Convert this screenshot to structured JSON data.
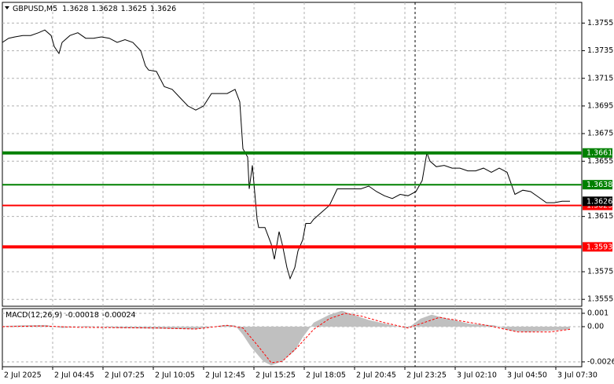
{
  "chart_data": [
    {
      "type": "line",
      "title": "GBPUSD,M5",
      "ohlc": [
        1.3628,
        1.3628,
        1.3625,
        1.3626
      ],
      "color": "#000000",
      "x": [
        0,
        4,
        8,
        13,
        18,
        23,
        27,
        31,
        33,
        36,
        38,
        43,
        48,
        53,
        58,
        63,
        68,
        73,
        78,
        83,
        88,
        91,
        93,
        98,
        103,
        108,
        113,
        118,
        123,
        128,
        133,
        138,
        143,
        148,
        151,
        153,
        156,
        157,
        159,
        162,
        163,
        167,
        171,
        173,
        176,
        178,
        181,
        183,
        186,
        188,
        191,
        193,
        196,
        198,
        203,
        208,
        213,
        218,
        223,
        228,
        233,
        238,
        243,
        248,
        253,
        258,
        263,
        267,
        270,
        272,
        276,
        281,
        286,
        291,
        296,
        301,
        306,
        311,
        316,
        321,
        326,
        331,
        336,
        341,
        346,
        351,
        356,
        361
      ],
      "values": [
        1.3741,
        1.3744,
        1.3745,
        1.3746,
        1.3746,
        1.3748,
        1.375,
        1.3746,
        1.3738,
        1.3733,
        1.3741,
        1.3746,
        1.3748,
        1.3744,
        1.3744,
        1.3745,
        1.3744,
        1.3741,
        1.3743,
        1.3741,
        1.3735,
        1.3724,
        1.3721,
        1.372,
        1.3709,
        1.3707,
        1.3701,
        1.3695,
        1.3692,
        1.3695,
        1.3704,
        1.3704,
        1.3704,
        1.3707,
        1.3698,
        1.3664,
        1.3658,
        1.3635,
        1.3652,
        1.3613,
        1.3607,
        1.3607,
        1.3595,
        1.3584,
        1.3604,
        1.3595,
        1.3578,
        1.357,
        1.3578,
        1.359,
        1.3598,
        1.361,
        1.361,
        1.3613,
        1.3618,
        1.3623,
        1.3635,
        1.3635,
        1.3635,
        1.3635,
        1.3637,
        1.3633,
        1.363,
        1.3628,
        1.3631,
        1.363,
        1.3633,
        1.3641,
        1.3661,
        1.3655,
        1.3651,
        1.3652,
        1.365,
        1.365,
        1.3648,
        1.3648,
        1.365,
        1.3647,
        1.365,
        1.3647,
        1.3631,
        1.3634,
        1.3633,
        1.3629,
        1.3625,
        1.3625,
        1.3626,
        1.3626
      ],
      "xlim": [
        0,
        368.5
      ],
      "xticks": [
        {
          "value": 0,
          "label": "2 Jul 2025"
        },
        {
          "value": 32,
          "label": "2 Jul 04:45"
        },
        {
          "value": 64,
          "label": "2 Jul 07:25"
        },
        {
          "value": 96,
          "label": "2 Jul 10:05"
        },
        {
          "value": 128,
          "label": "2 Jul 12:45"
        },
        {
          "value": 160,
          "label": "2 Jul 15:25"
        },
        {
          "value": 192,
          "label": "2 Jul 18:05"
        },
        {
          "value": 224,
          "label": "2 Jul 20:45"
        },
        {
          "value": 256,
          "label": "2 Jul 23:25"
        },
        {
          "value": 288,
          "label": "3 Jul 02:10"
        },
        {
          "value": 320,
          "label": "3 Jul 04:50"
        },
        {
          "value": 352,
          "label": "3 Jul 07:30"
        }
      ],
      "ylim": [
        1.355,
        1.377
      ],
      "yticks": [
        1.3755,
        1.3735,
        1.3715,
        1.3695,
        1.3675,
        1.3655,
        1.3615,
        1.3575,
        1.3555
      ],
      "grid": true,
      "levels": [
        {
          "value": 1.3661,
          "color": "#008000",
          "weight": "thick"
        },
        {
          "value": 1.3638,
          "color": "#008000",
          "weight": "thin"
        },
        {
          "value": 1.3623,
          "color": "#ff0000",
          "weight": "thin"
        },
        {
          "value": 1.3593,
          "color": "#ff0000",
          "weight": "thick"
        }
      ],
      "last": 1.3626
    },
    {
      "type": "macd",
      "title": "MACD(12,26,9)",
      "readout": [
        -0.00018,
        -0.00024
      ],
      "histogram": {
        "color": "#c0c0c0",
        "x": [
          0,
          13,
          28,
          38,
          53,
          73,
          98,
          123,
          141,
          148,
          153,
          158,
          166,
          171,
          178,
          186,
          191,
          198,
          208,
          216,
          223,
          233,
          248,
          258,
          266,
          273,
          283,
          298,
          313,
          323,
          333,
          348,
          361
        ],
        "values": [
          5e-05,
          0.0001,
          0.00012,
          -0.0001,
          5e-05,
          -0.0001,
          -0.00015,
          -0.0002,
          0.00012,
          0.0001,
          -0.0006,
          -0.0015,
          -0.0026,
          -0.0029,
          -0.0026,
          -0.0018,
          -0.0008,
          0.0003,
          0.0009,
          0.0012,
          0.0009,
          0.0005,
          0.0001,
          -0.0001,
          0.0006,
          0.0009,
          0.0006,
          0.0002,
          0.0001,
          -0.0003,
          -0.0004,
          -0.0003,
          -0.0002
        ]
      },
      "signal": {
        "color": "#ff0000",
        "x": [
          0,
          25,
          48,
          98,
          123,
          143,
          153,
          163,
          171,
          178,
          188,
          198,
          208,
          218,
          228,
          243,
          258,
          268,
          278,
          288,
          308,
          328,
          348,
          361
        ],
        "values": [
          0,
          5e-05,
          -5e-05,
          -0.0001,
          -0.00018,
          0.0001,
          -0.0001,
          -0.0015,
          -0.0027,
          -0.0026,
          -0.0015,
          -0.0002,
          0.0006,
          0.001,
          0.0008,
          0.0003,
          -0.0001,
          0.0003,
          0.0007,
          0.0005,
          0.0001,
          -0.0004,
          -0.0004,
          -0.0002
        ]
      },
      "xlim": [
        0,
        368.5
      ],
      "ylim": [
        -0.003,
        0.00135
      ],
      "yticks": [
        0.001,
        {
          "value": 0,
          "label": "0.00"
        },
        -0.00264
      ]
    }
  ]
}
